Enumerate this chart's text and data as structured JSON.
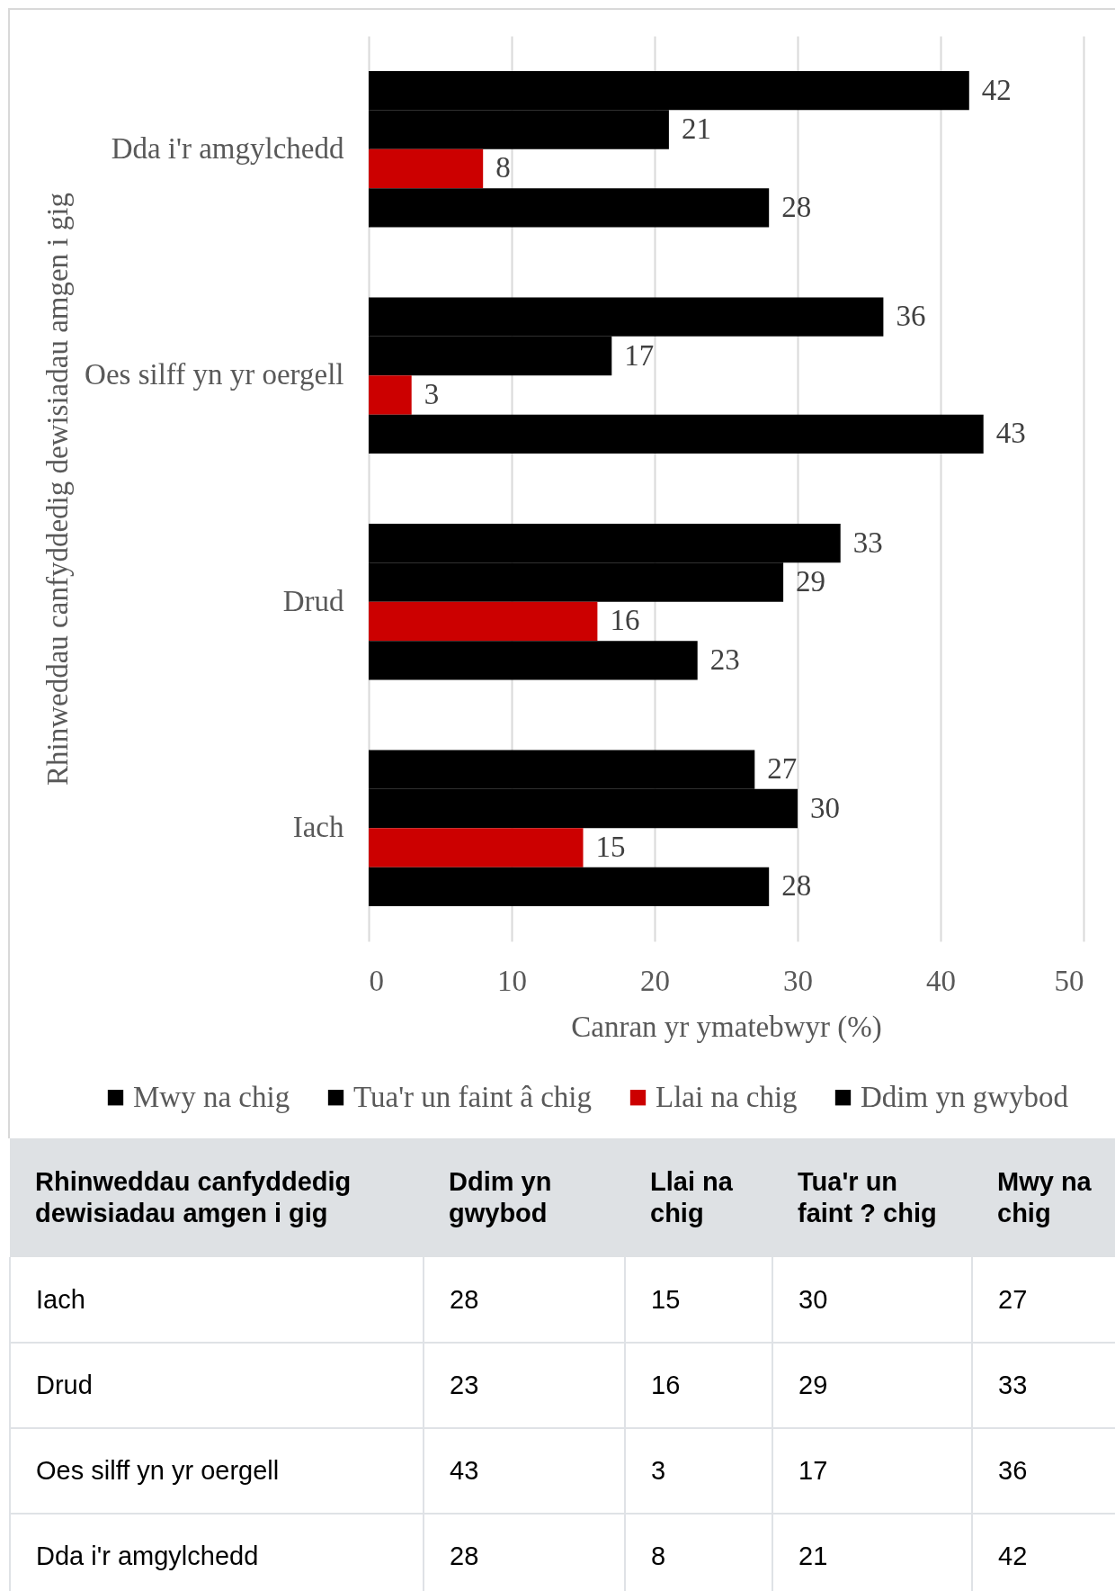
{
  "chart_data": [
    {
      "type": "bar",
      "orientation": "horizontal",
      "categories": [
        "Dda i'r amgylchedd",
        "Oes silff yn yr oergell",
        "Drud",
        "Iach"
      ],
      "series": [
        {
          "name": "Mwy na chig",
          "color": "#000000",
          "values": [
            42,
            36,
            33,
            27
          ]
        },
        {
          "name": "Tua'r un faint â chig",
          "color": "#000000",
          "values": [
            21,
            17,
            29,
            30
          ]
        },
        {
          "name": "Llai na chig",
          "color": "#cc0000",
          "values": [
            8,
            3,
            16,
            15
          ]
        },
        {
          "name": "Ddim yn gwybod",
          "color": "#000000",
          "values": [
            28,
            43,
            23,
            28
          ]
        }
      ],
      "xlim": [
        0,
        50
      ],
      "xticks": [
        0,
        10,
        20,
        30,
        40,
        50
      ],
      "xlabel": "Canran yr ymatebwyr (%)",
      "ylabel": "Rhinweddau canfyddedig dewisiadau amgen i gig",
      "grid": "x",
      "legend": "bottom",
      "data_labels": true
    },
    {
      "type": "other",
      "ylabel": "Rhinweddau canfyddedig dewisiadau amgen i gig",
      "categories": [
        "Iach",
        "Drud",
        "Oes silff yn yr oergell",
        "Dda i'r amgylchedd"
      ],
      "series": [
        {
          "name": "Ddim yn gwybod",
          "values": [
            28,
            23,
            43,
            28
          ]
        },
        {
          "name": "Llai na chig",
          "values": [
            15,
            16,
            3,
            8
          ]
        },
        {
          "name": "Tua'r un faint ? chig",
          "values": [
            30,
            29,
            17,
            21
          ]
        },
        {
          "name": "Mwy na chig",
          "values": [
            27,
            33,
            36,
            42
          ]
        }
      ],
      "data_labels": true
    }
  ]
}
